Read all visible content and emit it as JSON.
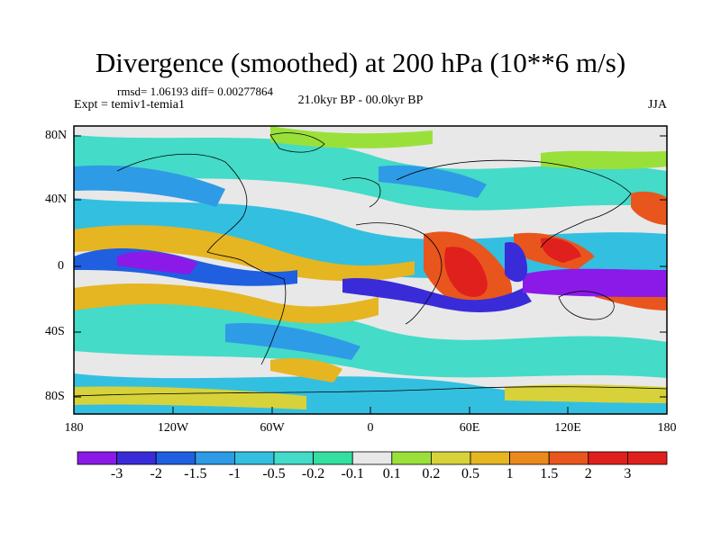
{
  "title": "Divergence (smoothed) at 200 hPa (10**6 m/s)",
  "stats": "rmsd= 1.06193 diff= 0.00277864",
  "experiment": "Expt = temiv1-temia1",
  "period": "21.0kyr BP - 00.0kyr BP",
  "season": "JJA",
  "lat_labels": [
    "80N",
    "40N",
    "0",
    "40S",
    "80S"
  ],
  "lon_labels": [
    "180",
    "120W",
    "60W",
    "0",
    "60E",
    "120E",
    "180"
  ],
  "colorbar": {
    "labels": [
      "-3",
      "-2",
      "-1.5",
      "-1",
      "-0.5",
      "-0.2",
      "-0.1",
      "0.1",
      "0.2",
      "0.5",
      "1",
      "1.5",
      "2",
      "3"
    ],
    "colors": [
      "#8B1AE8",
      "#3A2BD9",
      "#1F5FE0",
      "#2E9BE6",
      "#33BFE0",
      "#44DBC8",
      "#33E0A0",
      "#E8E8E8",
      "#9AE03A",
      "#D7D23A",
      "#E6B522",
      "#EB8A1C",
      "#E8561E",
      "#E0201C",
      "#E0201C"
    ]
  }
}
